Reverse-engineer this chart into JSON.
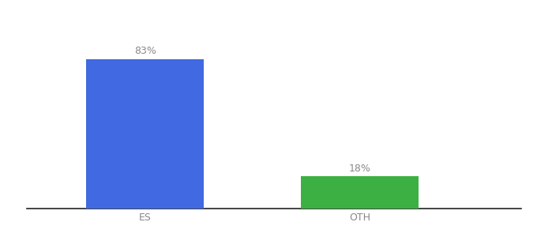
{
  "categories": [
    "ES",
    "OTH"
  ],
  "values": [
    83,
    18
  ],
  "bar_colors": [
    "#4169e1",
    "#3cb043"
  ],
  "labels": [
    "83%",
    "18%"
  ],
  "background_color": "#ffffff",
  "ylim": [
    0,
    100
  ],
  "label_fontsize": 9,
  "tick_fontsize": 9,
  "label_color": "#888888",
  "tick_color": "#888888",
  "spine_color": "#222222"
}
